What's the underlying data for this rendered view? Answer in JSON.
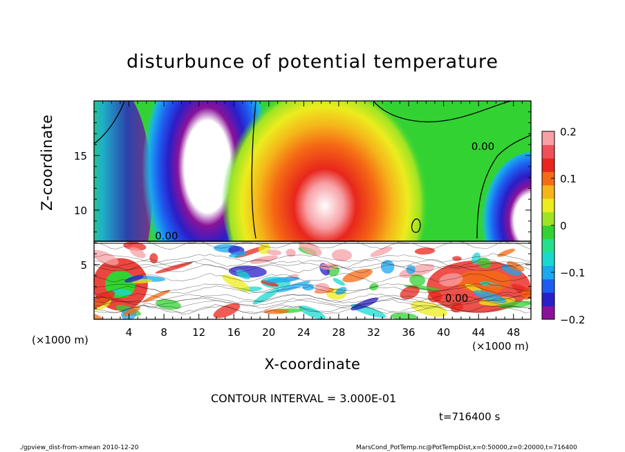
{
  "title": "disturbunce of potential temperature",
  "chart_data": {
    "type": "heatmap",
    "title": "disturbunce of potential temperature",
    "xlabel": "X-coordinate",
    "ylabel": "Z-coordinate",
    "x_unit": "(×1000 m)",
    "xlim": [
      0,
      50
    ],
    "ylim": [
      0,
      20
    ],
    "xticks": [
      4,
      8,
      12,
      16,
      20,
      24,
      28,
      32,
      36,
      40,
      44,
      48
    ],
    "yticks": [
      5,
      10,
      15
    ],
    "colorbar": {
      "min": -0.2,
      "max": 0.2,
      "ticks": [
        0.2,
        0.1,
        0,
        -0.1,
        -0.2
      ],
      "tick_labels": [
        "0.2",
        "0.1",
        "0",
        "−0.1",
        "−0.2"
      ],
      "colors": [
        "#8a129a",
        "#2a1ec8",
        "#1e5cf0",
        "#1aa8f0",
        "#1ad8d0",
        "#25e08a",
        "#33d233",
        "#9ee424",
        "#ecec1e",
        "#f5b41a",
        "#f56a14",
        "#e8261c",
        "#f0505a",
        "#f7a0a6"
      ]
    },
    "contour_label": "0.00",
    "inversion_height": 7.2,
    "features": [
      {
        "name": "upper-negative-plume",
        "x_center": 13,
        "sign": "negative"
      },
      {
        "name": "upper-positive-plume",
        "x_center": 27,
        "sign": "positive"
      },
      {
        "name": "edge-negative-right",
        "x_center": 49,
        "sign": "negative"
      },
      {
        "name": "edge-negative-left",
        "x_center": 0.5,
        "sign": "negative"
      }
    ]
  },
  "contour_interval_text": "CONTOUR INTERVAL = 3.000E-01",
  "time_text": "t=716400  s",
  "footer_left": "./gpview_dist-from-xmean   2010-12-20",
  "footer_right": "MarsCond_PotTemp.nc@PotTempDist,x=0:50000,z=0:20000,t=716400"
}
